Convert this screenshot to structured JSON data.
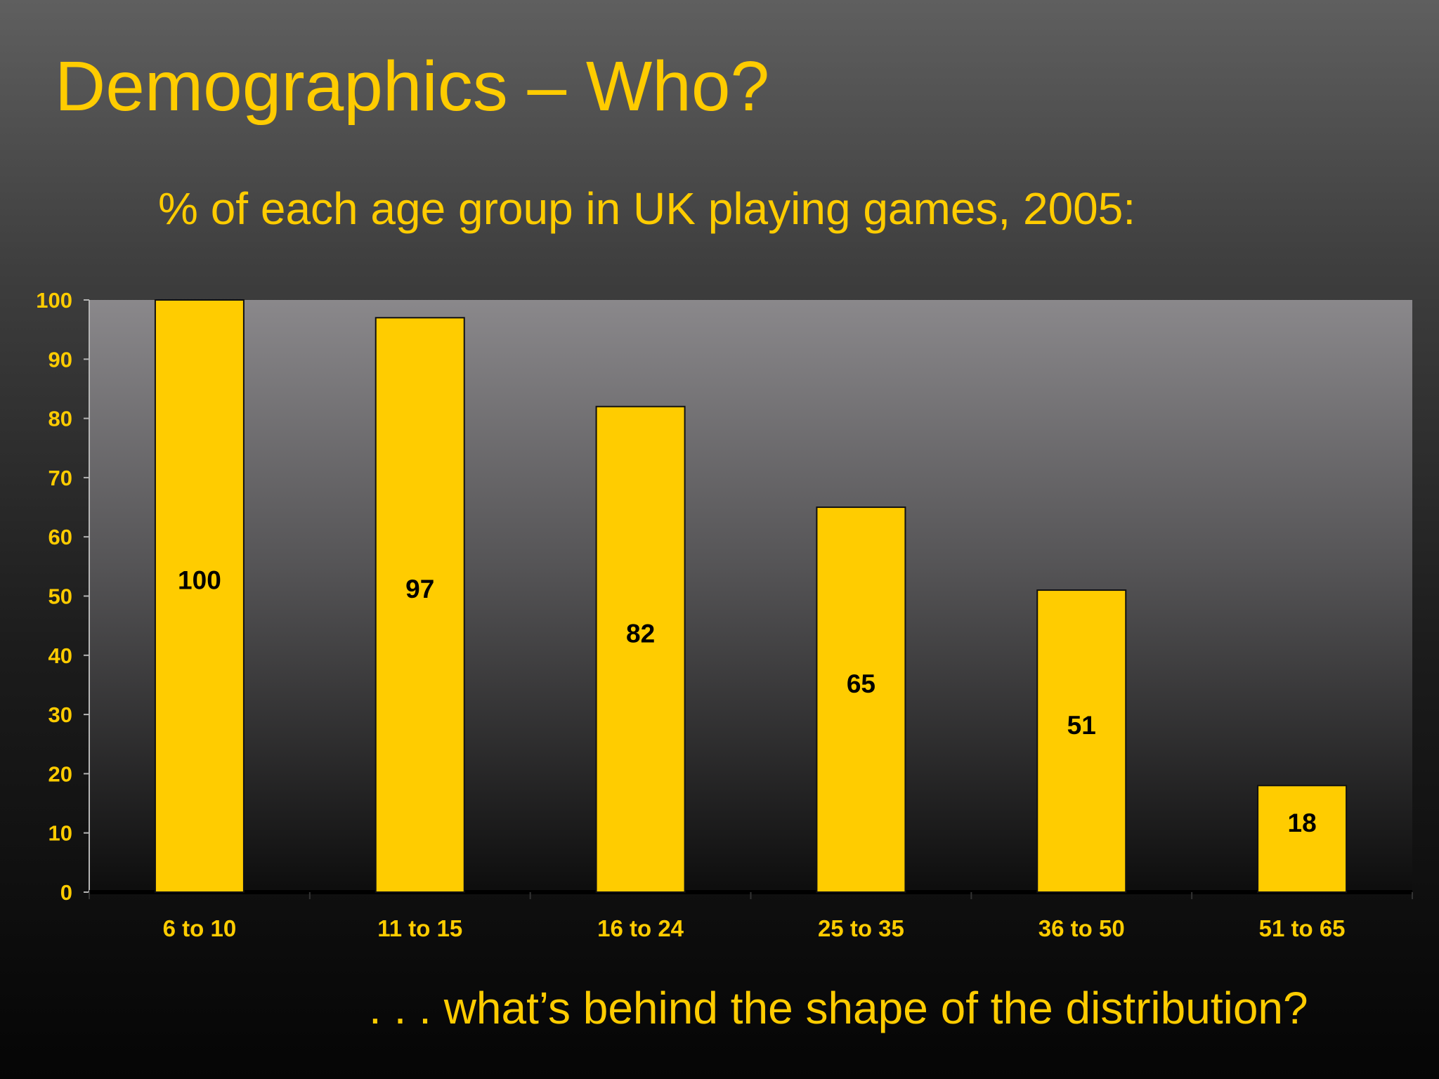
{
  "slide": {
    "title": "Demographics – Who?",
    "subtitle": "% of each age group in UK playing games, 2005:",
    "footer": ". . . what’s behind the shape of the distribution?"
  },
  "colors": {
    "bar": "#ffcc00",
    "text": "#ffcc00",
    "data_label": "#000000"
  },
  "chart_data": {
    "type": "bar",
    "categories": [
      "6 to 10",
      "11 to 15",
      "16 to 24",
      "25 to 35",
      "36 to 50",
      "51 to 65"
    ],
    "values": [
      100,
      97,
      82,
      65,
      51,
      18
    ],
    "data_labels": [
      "100",
      "97",
      "82",
      "65",
      "51",
      "18"
    ],
    "ylim": [
      0,
      100
    ],
    "yticks": [
      0,
      10,
      20,
      30,
      40,
      50,
      60,
      70,
      80,
      90,
      100
    ],
    "grid": false,
    "legend": "none"
  }
}
